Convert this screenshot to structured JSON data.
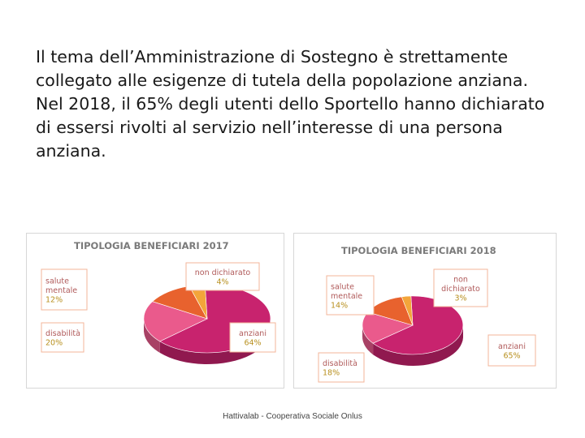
{
  "text": {
    "paragraph_1": "Il tema dell’Amministrazione di Sostegno è strettamente collegato alle esigenze di tutela della popolazione anziana.",
    "paragraph_2": "Nel 2018, il 65% degli utenti dello Sportello hanno dichiarato di essersi rivolti al servizio nell’interesse di una persona anziana."
  },
  "footer": "Hattivalab - Cooperativa Sociale Onlus",
  "colors": {
    "anziani": "#c8236e",
    "disabilita": "#ea5a8c",
    "salute_mentale": "#e8622e",
    "non_dichiarato": "#f3a53a",
    "label_border": "#f3b49a",
    "title": "#7a7a7a"
  },
  "chart_data": [
    {
      "type": "pie",
      "title": "TIPOLOGIA BENEFICIARI 2017",
      "slices": [
        {
          "label": "anziani",
          "value": 64,
          "value_label": "64%"
        },
        {
          "label": "disabilità",
          "value": 20,
          "value_label": "20%"
        },
        {
          "label": "salute mentale",
          "value": 12,
          "value_label": "12%"
        },
        {
          "label": "non dichiarato",
          "value": 4,
          "value_label": "4%"
        }
      ]
    },
    {
      "type": "pie",
      "title": "TIPOLOGIA BENEFICIARI 2018",
      "slices": [
        {
          "label": "anziani",
          "value": 65,
          "value_label": "65%"
        },
        {
          "label": "disabilità",
          "value": 18,
          "value_label": "18%"
        },
        {
          "label": "salute mentale",
          "value": 14,
          "value_label": "14%"
        },
        {
          "label": "non dichiarato",
          "value": 3,
          "value_label": "3%"
        }
      ]
    }
  ]
}
